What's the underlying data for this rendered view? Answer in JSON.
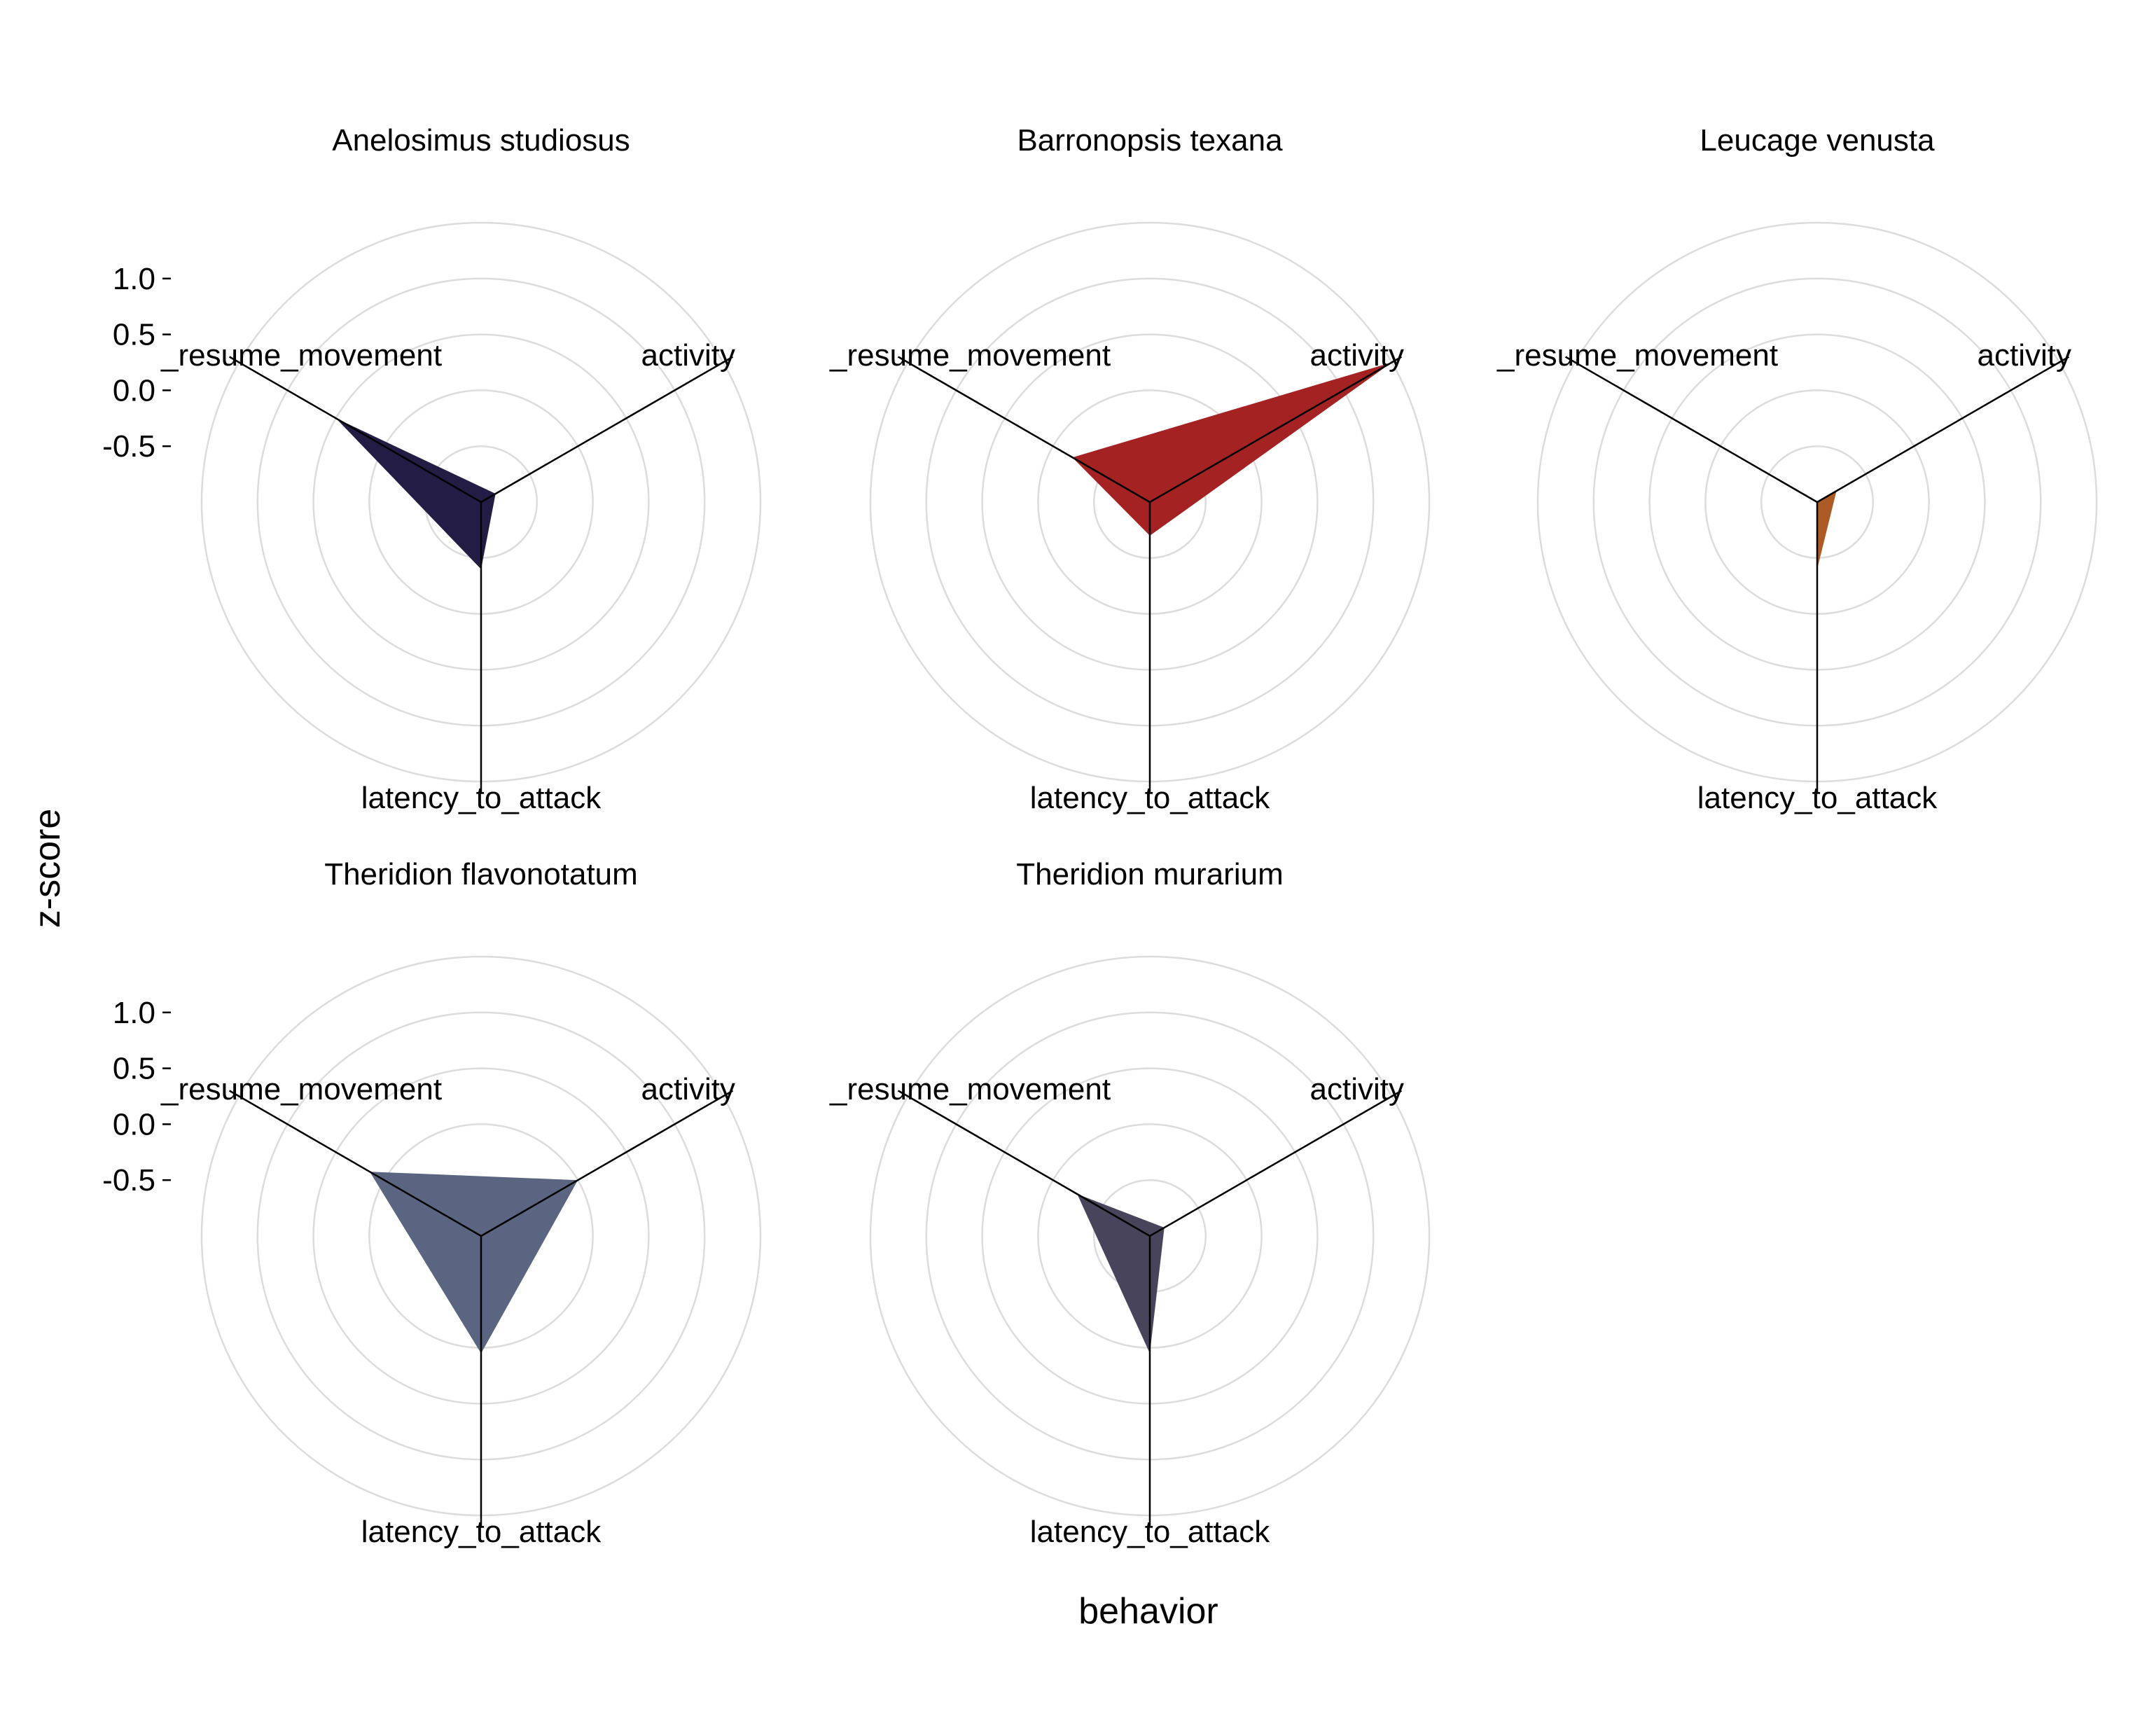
{
  "chart_data": {
    "type": "radar",
    "xlabel": "behavior",
    "ylabel": "z-score",
    "axes": [
      "activity",
      "latency_to_attack",
      "latency_to_resume_movement"
    ],
    "axis_tick_labels": [
      "activity",
      "latency_to_attack",
      "_resume_movement"
    ],
    "r_ticks": [
      1.0,
      0.5,
      0.0,
      -0.5
    ],
    "r_tick_labels": [
      "1.0",
      "0.5",
      "0.0",
      "-0.5"
    ],
    "r_range": [
      -1.0,
      1.6
    ],
    "gridlines": true,
    "panels": [
      {
        "title": "Anelosimus studiosus",
        "color": "#231d45",
        "values": {
          "activity": -0.85,
          "latency_to_attack": -0.4,
          "latency_to_resume_movement": 0.5
        }
      },
      {
        "title": "Barronopsis texana",
        "color": "#a52222",
        "values": {
          "activity": 1.5,
          "latency_to_attack": -0.7,
          "latency_to_resume_movement": -0.2
        }
      },
      {
        "title": "Leucage venusta",
        "color": "#ae5a27",
        "values": {
          "activity": -0.8,
          "latency_to_attack": -0.4,
          "latency_to_resume_movement": -1.0
        }
      },
      {
        "title": "Theridion flavonotatum",
        "color": "#5a6581",
        "values": {
          "activity": 0.0,
          "latency_to_attack": 0.05,
          "latency_to_resume_movement": 0.15
        }
      },
      {
        "title": "Theridion murarium",
        "color": "#48445b",
        "values": {
          "activity": -0.85,
          "latency_to_attack": 0.05,
          "latency_to_resume_movement": -0.25
        }
      }
    ]
  }
}
